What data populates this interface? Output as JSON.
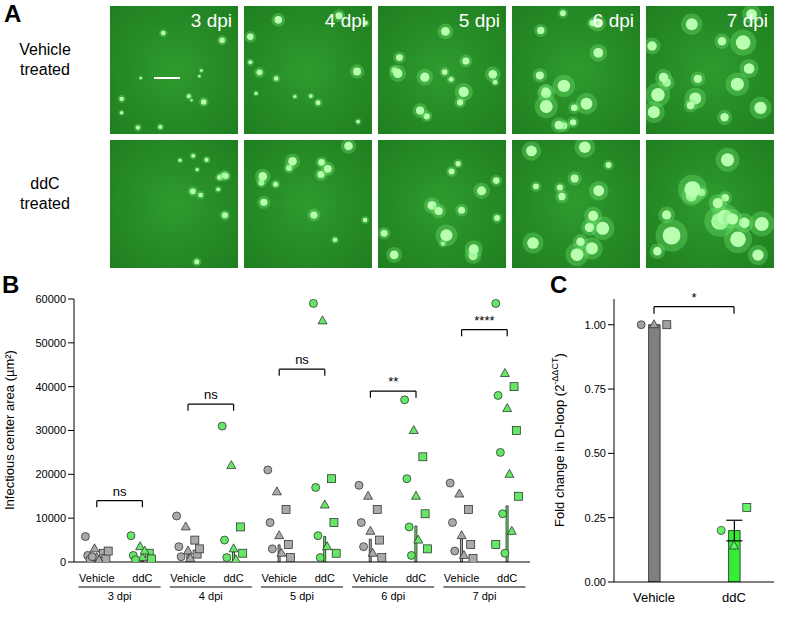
{
  "image_panel": {
    "panel": "A",
    "rows": [
      "Vehicle treated",
      "ddC treated"
    ],
    "columns": [
      "3 dpi",
      "4 dpi",
      "5 dpi",
      "6 dpi",
      "7 dpi"
    ]
  },
  "chart_data": [
    {
      "panel": "B",
      "type": "bar",
      "ylabel": "Infectious center area (µm²)",
      "categories": [
        "Vehicle",
        "ddC",
        "Vehicle",
        "ddC",
        "Vehicle",
        "ddC",
        "Vehicle",
        "ddC",
        "Vehicle",
        "ddC"
      ],
      "groups": [
        "3 dpi",
        "4 dpi",
        "5 dpi",
        "6 dpi",
        "7 dpi"
      ],
      "values": [
        1200,
        1300,
        2200,
        2300,
        3900,
        5800,
        5200,
        8200,
        5500,
        12800
      ],
      "colors": [
        "#8c8c8c",
        "#33dd33",
        "#8c8c8c",
        "#33dd33",
        "#8c8c8c",
        "#33dd33",
        "#8c8c8c",
        "#33dd33",
        "#8c8c8c",
        "#33dd33"
      ],
      "points": [
        [
          5800,
          3000,
          2000,
          1500,
          1000,
          800,
          600,
          400,
          2500,
          1200
        ],
        [
          6000,
          3500,
          2000,
          1500,
          1000,
          700,
          500,
          2500
        ],
        [
          10500,
          8000,
          5000,
          3500,
          2500,
          1800,
          1200,
          800,
          3000
        ],
        [
          31000,
          22000,
          8000,
          5000,
          3000,
          2000,
          1000,
          500
        ],
        [
          21000,
          16000,
          12000,
          9000,
          6000,
          4000,
          3000,
          2000,
          1000
        ],
        [
          59000,
          55000,
          19000,
          17000,
          13000,
          9000,
          6000,
          3500,
          2000,
          1000
        ],
        [
          17500,
          15000,
          12000,
          9000,
          7000,
          5000,
          3500,
          2000,
          1000
        ],
        [
          37000,
          30000,
          24000,
          19000,
          15000,
          11000,
          8000,
          5000,
          3000,
          1500
        ],
        [
          18000,
          15500,
          12000,
          9000,
          6000,
          4000,
          2500,
          1500,
          800
        ],
        [
          59000,
          43000,
          40000,
          38000,
          35000,
          30000,
          25000,
          20000,
          15000,
          11000,
          7000,
          4000,
          2000
        ]
      ],
      "significance": [
        {
          "from": 0,
          "to": 1,
          "label": "ns",
          "y": 14000
        },
        {
          "from": 2,
          "to": 3,
          "label": "ns",
          "y": 36000
        },
        {
          "from": 4,
          "to": 5,
          "label": "ns",
          "y": 44000
        },
        {
          "from": 6,
          "to": 7,
          "label": "**",
          "y": 39000
        },
        {
          "from": 8,
          "to": 9,
          "label": "****",
          "y": 53000
        }
      ],
      "ylim": [
        0,
        60000
      ],
      "yticks": [
        0,
        10000,
        20000,
        30000,
        40000,
        50000,
        60000
      ]
    },
    {
      "panel": "C",
      "type": "bar",
      "ylabel": {
        "text": "Fold change in D-loop (2",
        "superscript": "-ΔΔCT",
        "suffix": ")"
      },
      "categories": [
        "Vehicle",
        "ddC"
      ],
      "values": [
        1.0,
        0.2
      ],
      "errors": [
        0,
        0.04
      ],
      "colors": [
        "#808080",
        "#33ee33"
      ],
      "points": [
        [
          1.0,
          1.0,
          1.0
        ],
        [
          0.2,
          0.14,
          0.29
        ]
      ],
      "significance": [
        {
          "from": 0,
          "to": 1,
          "label": "*",
          "y": 1.07
        }
      ],
      "ylim": [
        0,
        1.1
      ],
      "yticks": [
        {
          "value": 0,
          "label": "0.00"
        },
        {
          "value": 0.25,
          "label": "0.25"
        },
        {
          "value": 0.5,
          "label": "0.50"
        },
        {
          "value": 0.75,
          "label": "0.75"
        },
        {
          "value": 1.0,
          "label": "1.00"
        }
      ]
    }
  ]
}
